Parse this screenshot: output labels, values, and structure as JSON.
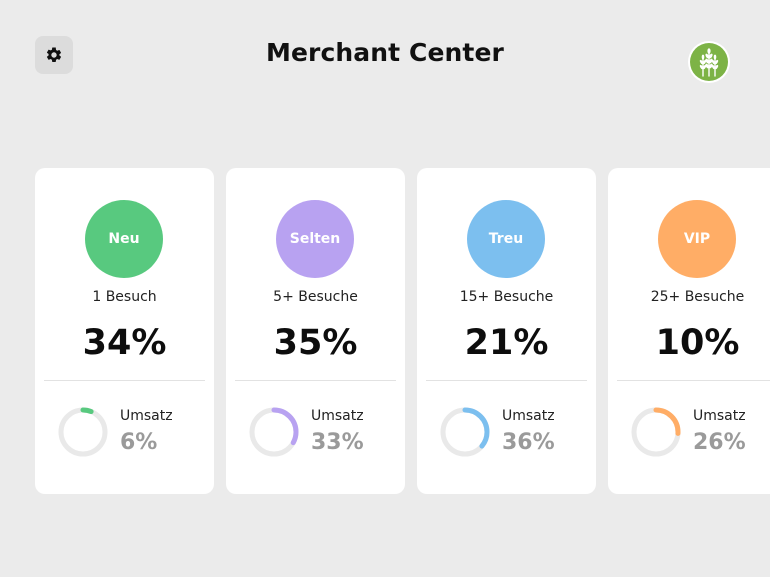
{
  "header": {
    "title": "Merchant Center",
    "settings_icon": "gear-icon",
    "avatar_icon": "wheat-icon"
  },
  "segments": [
    {
      "name": "Neu",
      "visits": "1 Besuch",
      "share": "34%",
      "revenue_label": "Umsatz",
      "revenue": "6%",
      "revenue_fraction": 0.06,
      "color": "#58c97f"
    },
    {
      "name": "Selten",
      "visits": "5+ Besuche",
      "share": "35%",
      "revenue_label": "Umsatz",
      "revenue": "33%",
      "revenue_fraction": 0.33,
      "color": "#b8a2f1"
    },
    {
      "name": "Treu",
      "visits": "15+ Besuche",
      "share": "21%",
      "revenue_label": "Umsatz",
      "revenue": "36%",
      "revenue_fraction": 0.36,
      "color": "#7cbfef"
    },
    {
      "name": "VIP",
      "visits": "25+ Besuche",
      "share": "10%",
      "revenue_label": "Umsatz",
      "revenue": "26%",
      "revenue_fraction": 0.26,
      "color": "#ffad66"
    }
  ],
  "colors": {
    "background": "#ebebeb",
    "card": "#ffffff",
    "ring_track": "#e9e9e9",
    "avatar": "#7db346"
  }
}
